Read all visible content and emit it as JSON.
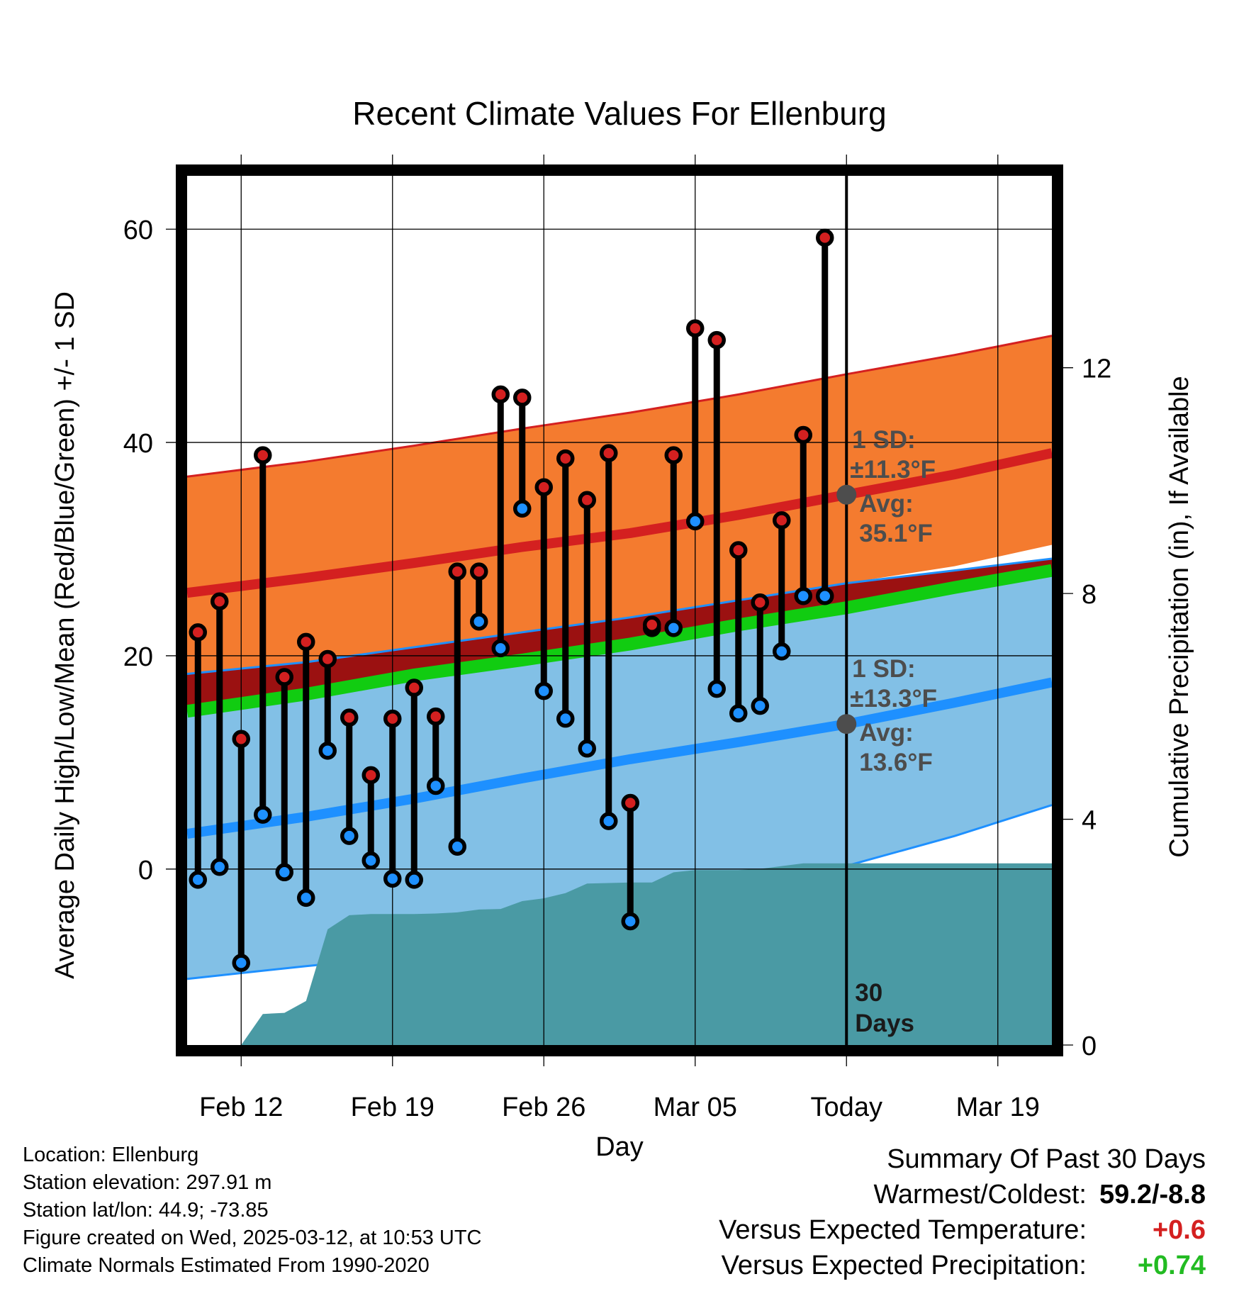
{
  "chart_data": {
    "type": "line",
    "title": "Recent Climate Values For Ellenburg",
    "xlabel": "Day",
    "ylabel": "Average Daily High/Low/Mean (Red/Blue/Green) +/- 1 SD",
    "y2label": "Cumulative Precipitation (in), If Available",
    "ylim": [
      -16.5,
      65
    ],
    "y2lim": [
      0,
      15.4
    ],
    "yticks": [
      0,
      20,
      40,
      60
    ],
    "y2ticks": [
      0,
      4,
      8,
      12
    ],
    "x_tick_labels": [
      "Feb 12",
      "Feb 19",
      "Feb 26",
      "Mar 05",
      "Today",
      "Mar 19"
    ],
    "xlim_days": [
      -30.5,
      9.5
    ],
    "grid": true,
    "today_marker": "30\nDays",
    "series": [
      {
        "name": "High",
        "color": "#d42020",
        "x": [
          -30,
          -29,
          -28,
          -27,
          -26,
          -25,
          -24,
          -23,
          -22,
          -21,
          -20,
          -19,
          -18,
          -17,
          -16,
          -15,
          -14,
          -13,
          -12,
          -11,
          -10,
          -9,
          -8,
          -7,
          -6,
          -5,
          -4,
          -3,
          -2,
          -1
        ],
        "values": [
          22.2,
          25.1,
          12.2,
          38.8,
          18.0,
          21.3,
          19.7,
          14.2,
          8.8,
          14.1,
          17.0,
          14.3,
          27.9,
          27.9,
          44.5,
          44.2,
          35.8,
          38.5,
          34.6,
          39.0,
          6.2,
          22.9,
          38.8,
          50.7,
          49.6,
          29.9,
          25.0,
          32.7,
          40.7,
          59.2
        ]
      },
      {
        "name": "Low",
        "color": "#1e90ff",
        "x": [
          -30,
          -29,
          -28,
          -27,
          -26,
          -25,
          -24,
          -23,
          -22,
          -21,
          -20,
          -19,
          -18,
          -17,
          -16,
          -15,
          -14,
          -13,
          -12,
          -11,
          -10,
          -9,
          -8,
          -7,
          -6,
          -5,
          -4,
          -3,
          -2,
          -1
        ],
        "values": [
          -1.0,
          0.2,
          -8.8,
          5.1,
          -0.3,
          -2.7,
          11.1,
          3.1,
          0.8,
          -0.9,
          -1.0,
          7.8,
          2.1,
          23.2,
          20.7,
          33.8,
          16.7,
          14.1,
          11.3,
          4.5,
          -4.9,
          22.6,
          22.6,
          32.6,
          16.9,
          14.6,
          15.3,
          20.4,
          25.6,
          25.6
        ]
      }
    ],
    "normals": {
      "x": [
        -30.5,
        -25,
        -20,
        -15,
        -10,
        -5,
        0,
        5,
        9.5
      ],
      "high_mean": [
        25.9,
        27.3,
        28.7,
        30.2,
        31.5,
        33.2,
        35.1,
        37.0,
        39.0
      ],
      "high_upper": [
        36.8,
        38.2,
        39.7,
        41.3,
        42.8,
        44.5,
        46.4,
        48.2,
        50.0
      ],
      "high_lower": [
        18.3,
        19.4,
        20.8,
        22.2,
        23.6,
        25.2,
        26.8,
        28.4,
        30.4
      ],
      "low_mean": [
        3.3,
        4.9,
        6.6,
        8.5,
        10.3,
        11.9,
        13.6,
        15.6,
        17.5
      ],
      "low_upper": [
        18.3,
        19.4,
        20.8,
        22.2,
        23.6,
        25.2,
        26.8,
        28.0,
        29.1
      ],
      "low_lower": [
        -10.3,
        -9.1,
        -8.1,
        -6.8,
        -4.9,
        -2.9,
        0.3,
        3.1,
        6.0
      ],
      "mean_line": [
        14.8,
        16.4,
        18.2,
        19.6,
        21.1,
        22.9,
        24.5,
        26.4,
        28.0
      ],
      "colors": {
        "high_band": "#f47b2f",
        "high_line": "#d42020",
        "low_band": "#82c0e6",
        "low_line": "#1e90ff",
        "low_band_edge": "#1e90ff",
        "overlap": "#9b1111",
        "mean_line": "#11cc11"
      }
    },
    "precipitation": {
      "name": "Cumulative Precipitation",
      "color": "#4a9aa4",
      "x": [
        -28,
        -27,
        -26,
        -25,
        -24,
        -23,
        -22,
        -21,
        -20,
        -19,
        -18,
        -17,
        -16,
        -15,
        -14,
        -13,
        -12,
        -11,
        -10,
        -9,
        -8,
        -7,
        -6,
        -5,
        -4,
        -3,
        -2,
        -1,
        0,
        9.5
      ],
      "values": [
        0.0,
        0.55,
        0.57,
        0.78,
        2.05,
        2.3,
        2.32,
        2.32,
        2.32,
        2.33,
        2.35,
        2.4,
        2.41,
        2.55,
        2.6,
        2.69,
        2.86,
        2.87,
        2.88,
        2.88,
        3.06,
        3.1,
        3.1,
        3.1,
        3.12,
        3.17,
        3.22,
        3.22,
        3.22,
        3.22
      ]
    },
    "annotations": [
      {
        "name": "high-normal",
        "x": 0,
        "y": 35.1,
        "lines": [
          "1 SD:",
          "±11.3°F",
          "Avg:",
          "35.1°F"
        ]
      },
      {
        "name": "low-normal",
        "x": 0,
        "y": 13.6,
        "lines": [
          "1 SD:",
          "±13.3°F",
          "Avg:",
          "13.6°F"
        ]
      }
    ]
  },
  "info": {
    "location": "Location: Ellenburg",
    "elevation": "Station elevation: 297.91 m",
    "latlon": "Station lat/lon: 44.9; -73.85",
    "created": "Figure created on Wed, 2025-03-12, at 10:53 UTC",
    "normals": "Climate Normals Estimated From 1990-2020"
  },
  "summary": {
    "title": "Summary Of Past 30 Days",
    "warmest_coldest_label": "Warmest/Coldest:",
    "warmest_coldest_value": "59.2/-8.8",
    "temp_label": "Versus Expected Temperature:",
    "temp_value": "+0.6",
    "temp_color": "#d42020",
    "precip_label": "Versus Expected Precipitation:",
    "precip_value": "+0.74",
    "precip_color": "#22bb22"
  }
}
